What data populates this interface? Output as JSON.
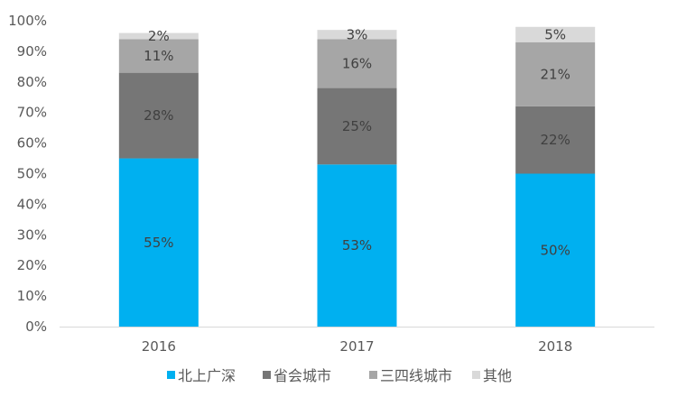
{
  "chart_data": {
    "type": "bar",
    "stacked": true,
    "categories": [
      "2016",
      "2017",
      "2018"
    ],
    "series": [
      {
        "name": "北上广深",
        "values": [
          55,
          53,
          50
        ],
        "labels": [
          "55%",
          "53%",
          "50%"
        ],
        "color": "#00b0f0",
        "label_color": "#404040"
      },
      {
        "name": "省会城市",
        "values": [
          28,
          25,
          22
        ],
        "labels": [
          "28%",
          "25%",
          "22%"
        ],
        "color": "#767676",
        "label_color": "#404040"
      },
      {
        "name": "三四线城市",
        "values": [
          11,
          16,
          21
        ],
        "labels": [
          "11%",
          "16%",
          "21%"
        ],
        "color": "#a6a6a6",
        "label_color": "#404040"
      },
      {
        "name": "其他",
        "values": [
          2,
          3,
          5
        ],
        "labels": [
          "2%",
          "3%",
          "5%"
        ],
        "color": "#d9d9d9",
        "label_color": "#404040"
      }
    ],
    "y_ticks": [
      "0%",
      "10%",
      "20%",
      "30%",
      "40%",
      "50%",
      "60%",
      "70%",
      "80%",
      "90%",
      "100%"
    ],
    "ylim": [
      0,
      100
    ],
    "grid": false,
    "legend_position": "bottom",
    "title": "",
    "xlabel": "",
    "ylabel": ""
  }
}
